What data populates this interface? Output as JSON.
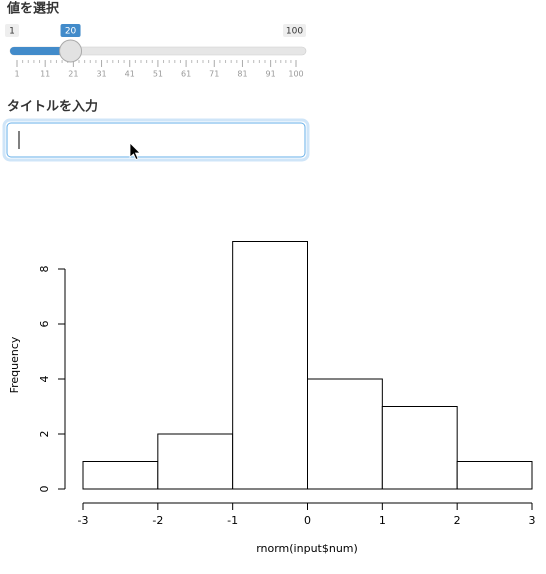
{
  "slider": {
    "label": "値を選択",
    "min": 1,
    "max": 100,
    "value": 20,
    "ticks": [
      1,
      11,
      21,
      31,
      41,
      51,
      61,
      71,
      81,
      91,
      100
    ]
  },
  "text_input": {
    "label": "タイトルを入力"
  },
  "chart_data": {
    "type": "histogram",
    "bins": [
      -3,
      -2,
      -1,
      0,
      1,
      2,
      3
    ],
    "counts": [
      1,
      2,
      9,
      4,
      3,
      1
    ],
    "xlabel": "rnorm(input$num)",
    "ylabel": "Frequency",
    "xlim": [
      -3,
      3
    ],
    "ylim": [
      0,
      9
    ],
    "xticks": [
      -3,
      -2,
      -1,
      0,
      1,
      2,
      3
    ],
    "yticks": [
      0,
      2,
      4,
      6,
      8
    ],
    "color": "#ffffff"
  }
}
